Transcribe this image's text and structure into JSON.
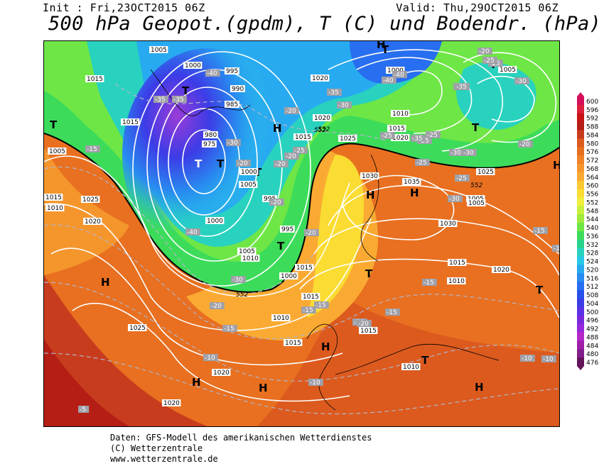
{
  "header": {
    "init": "Init : Fri,23OCT2015 06Z",
    "valid": "Valid: Thu,29OCT2015 06Z",
    "title": "500 hPa Geopot.(gpdm), T (C) und Bodendr. (hPa)"
  },
  "footer": {
    "line1": "Daten: GFS-Modell des amerikanischen Wetterdienstes",
    "line2": "(C) Wetterzentrale",
    "line3": "www.wetterzentrale.de"
  },
  "legend": {
    "labels": [
      "600",
      "596",
      "592",
      "588",
      "584",
      "580",
      "576",
      "572",
      "568",
      "564",
      "560",
      "556",
      "552",
      "548",
      "544",
      "540",
      "536",
      "532",
      "528",
      "524",
      "520",
      "516",
      "512",
      "508",
      "504",
      "500",
      "496",
      "492",
      "488",
      "484",
      "480",
      "476"
    ],
    "colors": [
      "#d40f5a",
      "#dc1f3c",
      "#c81414",
      "#b41e14",
      "#c83c1e",
      "#dc5a1e",
      "#e66e1e",
      "#f08228",
      "#f5962d",
      "#faaa32",
      "#fac832",
      "#fadc32",
      "#f0f03c",
      "#c8f03c",
      "#a0eb3c",
      "#6ee646",
      "#3cdc5a",
      "#28d28c",
      "#28d2be",
      "#28c8e6",
      "#28aaf0",
      "#288cf0",
      "#286ef0",
      "#2850eb",
      "#3c3ce6",
      "#5a32e6",
      "#7828dc",
      "#9628dc",
      "#b428c8",
      "#a01eaa",
      "#821e8c",
      "#64145a"
    ]
  },
  "map": {
    "pressure_labels": [
      "1005",
      "1015",
      "1000",
      "995",
      "990",
      "985",
      "980",
      "975",
      "1015",
      "1020",
      "1005",
      "1000",
      "1005",
      "995",
      "1010",
      "1015",
      "1010",
      "1020",
      "1010",
      "1015",
      "1020",
      "1025",
      "1030",
      "1035",
      "1030",
      "1025",
      "1020",
      "1025",
      "1020",
      "1015",
      "1010",
      "1005",
      "1000",
      "1015",
      "1015",
      "1010",
      "1005",
      "1000",
      "1025",
      "1020",
      "1020",
      "1015",
      "1010",
      "1015",
      "1005",
      "995",
      "1000",
      "1015",
      "1005"
    ],
    "temperature_labels": [
      "-40",
      "-35",
      "-35",
      "-30",
      "-40",
      "-20",
      "-15",
      "-35",
      "-25",
      "-20",
      "-20",
      "-25",
      "-30",
      "-20",
      "-25",
      "-25",
      "-20",
      "-30",
      "-30",
      "-35",
      "-30",
      "-25",
      "-25",
      "-20",
      "-20",
      "-15",
      "-10",
      "-15",
      "-15",
      "-20",
      "-15",
      "-10",
      "-10",
      "-5",
      "-15",
      "-15",
      "-15",
      "-20",
      "-20",
      "-30",
      "-40",
      "-25",
      "-25",
      "-30",
      "-40",
      "-35",
      "-20",
      "-30",
      "-10"
    ],
    "height_labels": [
      "552",
      "552",
      "552",
      "552"
    ],
    "highs": [
      "H",
      "H",
      "H",
      "H",
      "H",
      "H",
      "H",
      "H",
      "H",
      "H"
    ],
    "lows": [
      "T",
      "T",
      "T",
      "T",
      "T",
      "T",
      "T",
      "T",
      "T",
      "T",
      "T",
      "T"
    ]
  }
}
